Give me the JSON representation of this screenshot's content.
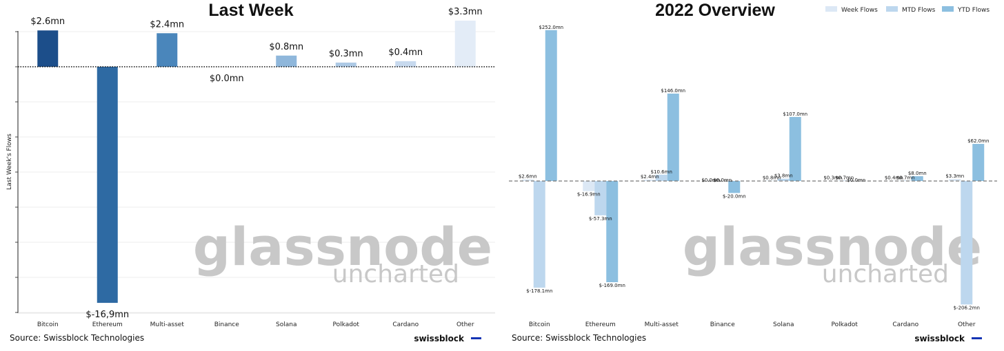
{
  "left_panel": {
    "source": "Source: Swissblock Technologies",
    "brand": "swissblock",
    "watermark": {
      "line1": "glassnode",
      "line2": "uncharted"
    }
  },
  "right_panel": {
    "source": "Source: Swissblock Technologies",
    "brand": "swissblock",
    "watermark": {
      "line1": "glassnode",
      "line2": "uncharted"
    }
  },
  "colors": {
    "week": "#dce8f5",
    "mtd": "#bdd7ee",
    "ytd": "#8cbfe0",
    "left_bars": [
      "#1c4e8a",
      "#2e6aa3",
      "#4a86bb",
      "#6f9fcc",
      "#8fb7db",
      "#adc9e5",
      "#c7d9ee",
      "#e3ecf7"
    ],
    "brand_accent": "#1434b4"
  },
  "chart_data": [
    {
      "type": "bar",
      "title": "Last Week",
      "ylabel": "Last Week's Flows",
      "xlabel": "",
      "categories": [
        "Bitcoin",
        "Ethereum",
        "Multi-asset",
        "Binance",
        "Solana",
        "Polkadot",
        "Cardano",
        "Other"
      ],
      "values": [
        2.6,
        -16.9,
        2.4,
        0.0,
        0.8,
        0.3,
        0.4,
        3.3
      ],
      "data_labels": [
        "$2.6mn",
        "$-16,9mn",
        "$2.4mn",
        "$0.0mn",
        "$0.8mn",
        "$0.3mn",
        "$0.4mn",
        "$3.3mn"
      ],
      "ylim": [
        -17.5,
        2.5
      ],
      "grid": true
    },
    {
      "type": "bar",
      "title": "2022 Overview",
      "categories": [
        "Bitcoin",
        "Ethereum",
        "Multi-asset",
        "Binance",
        "Solana",
        "Polkadot",
        "Cardano",
        "Other"
      ],
      "legend": "top-right",
      "ylim": [
        -220,
        265
      ],
      "grid": false,
      "series": [
        {
          "name": "Week Flows",
          "values": [
            2.6,
            -16.9,
            2.4,
            0.0,
            0.8,
            0.3,
            0.4,
            3.3
          ],
          "labels": [
            "$2.6mn",
            "$-16.9mn",
            "$2.4mn",
            "$0.0mn",
            "$0.8mn",
            "$0.3mn",
            "$0.4mn",
            "$3.3mn"
          ]
        },
        {
          "name": "MTD Flows",
          "values": [
            -178.1,
            -57.3,
            10.6,
            0.0,
            3.8,
            0.7,
            0.7,
            -206.2
          ],
          "labels": [
            "$-178.1mn",
            "$-57.3mn",
            "$10.6mn",
            "$0.0mn",
            "$3.8mn",
            "$0.7mn",
            "$0.7mn",
            "$-206.2mn"
          ]
        },
        {
          "name": "YTD Flows",
          "values": [
            252.0,
            -169.0,
            146.0,
            -20.0,
            107.0,
            0.0,
            8.0,
            62.0
          ],
          "labels": [
            "$252.0mn",
            "$-169.0mn",
            "$146.0mn",
            "$-20.0mn",
            "$107.0mn",
            "$0.0mn",
            "$8.0mn",
            "$62.0mn"
          ]
        }
      ]
    }
  ]
}
